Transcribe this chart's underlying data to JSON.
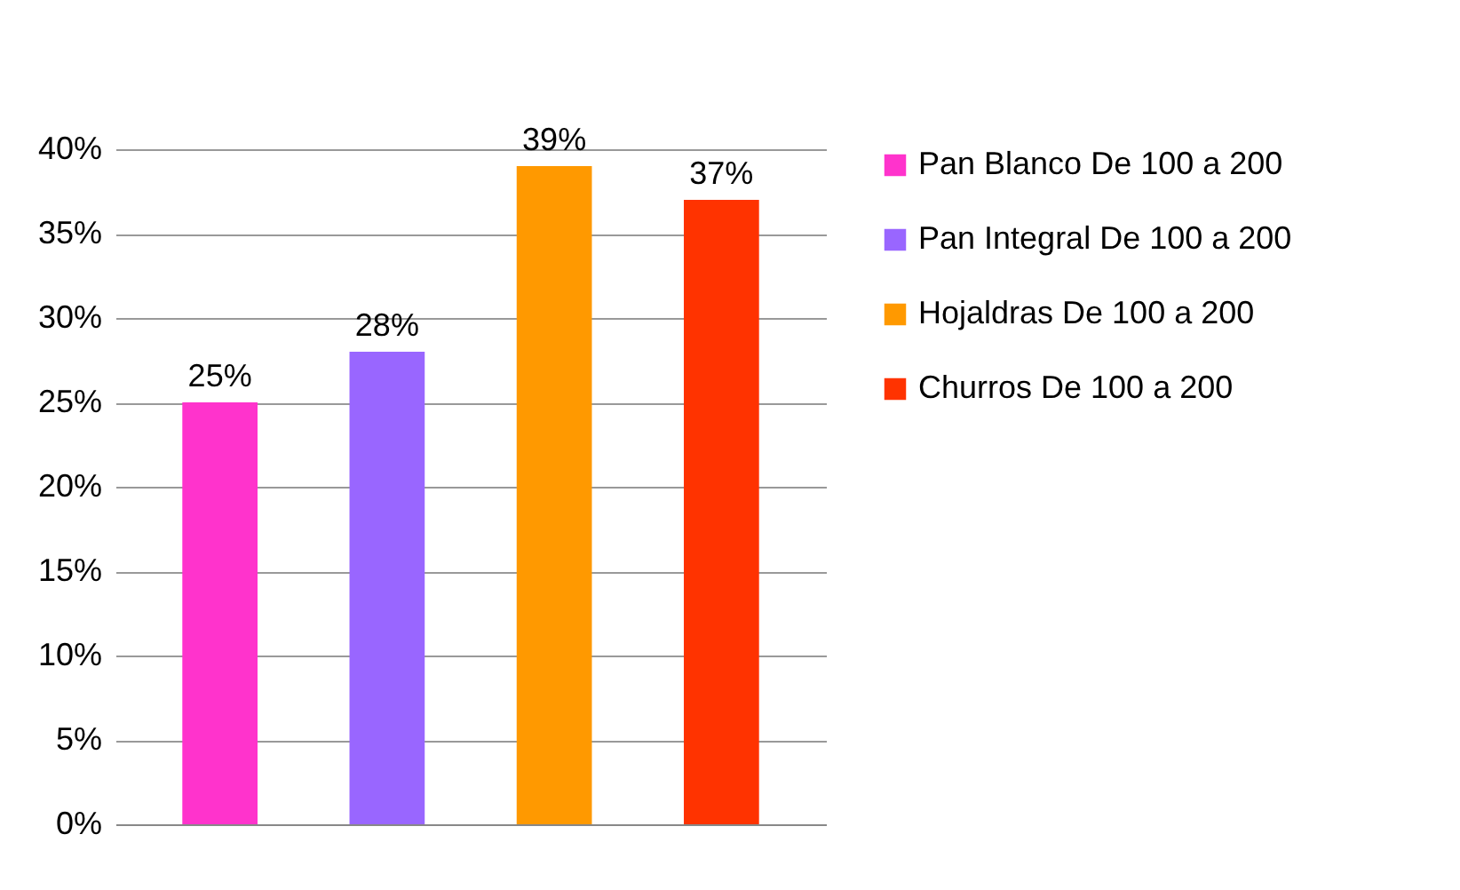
{
  "chart_data": {
    "type": "bar",
    "categories": [
      null
    ],
    "series": [
      {
        "name": "Pan Blanco De 100 a 200",
        "color": "#ff33cc",
        "values": [
          25
        ],
        "value_labels": [
          "25%"
        ]
      },
      {
        "name": "Pan Integral De 100 a 200",
        "color": "#9966ff",
        "values": [
          28
        ],
        "value_labels": [
          "28%"
        ]
      },
      {
        "name": "Hojaldras De 100 a 200",
        "color": "#ff9900",
        "values": [
          39
        ],
        "value_labels": [
          "39%"
        ]
      },
      {
        "name": "Churros De 100 a 200",
        "color": "#ff3300",
        "values": [
          37
        ],
        "value_labels": [
          "37%"
        ]
      }
    ],
    "ylim": [
      0,
      40
    ],
    "yticks": [
      {
        "value": 0,
        "label": "0%"
      },
      {
        "value": 5,
        "label": "5%"
      },
      {
        "value": 10,
        "label": "10%"
      },
      {
        "value": 15,
        "label": "15%"
      },
      {
        "value": 20,
        "label": "20%"
      },
      {
        "value": 25,
        "label": "25%"
      },
      {
        "value": 30,
        "label": "30%"
      },
      {
        "value": 35,
        "label": "35%"
      },
      {
        "value": 40,
        "label": "40%"
      }
    ],
    "grid": true,
    "legend": "right"
  }
}
